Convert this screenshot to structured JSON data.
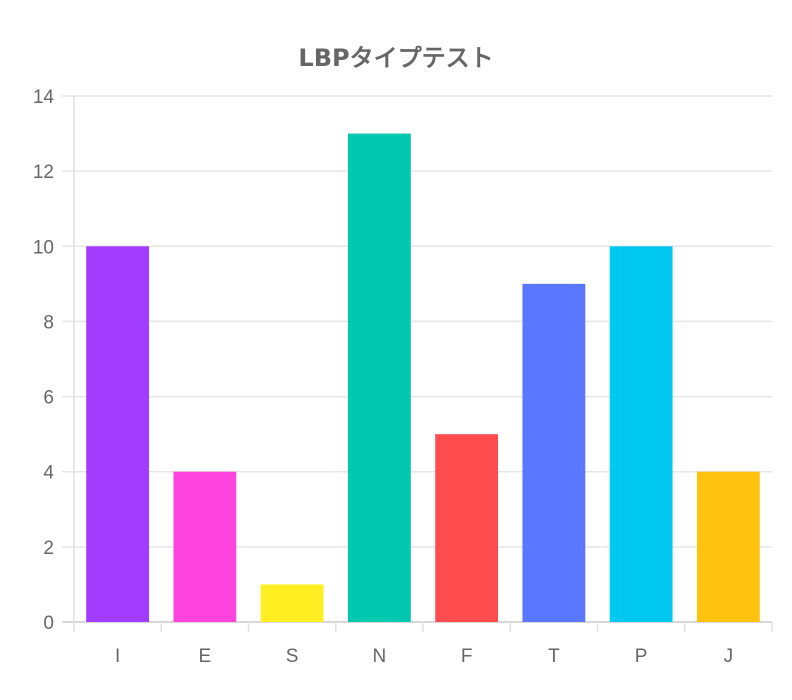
{
  "chart_data": {
    "type": "bar",
    "title": "LBPタイプテスト",
    "categories": [
      "I",
      "E",
      "S",
      "N",
      "F",
      "T",
      "P",
      "J"
    ],
    "values": [
      10,
      4,
      1,
      13,
      5,
      9,
      10,
      4
    ],
    "colors": [
      "#a23dff",
      "#ff44dd",
      "#ffee22",
      "#00c9b0",
      "#ff4d4f",
      "#5a78ff",
      "#00c8f0",
      "#ffc20e"
    ],
    "ylim": [
      0,
      14
    ],
    "yticks": [
      0,
      2,
      4,
      6,
      8,
      10,
      12,
      14
    ],
    "xlabel": "",
    "ylabel": "",
    "grid": true,
    "legend": "none"
  }
}
